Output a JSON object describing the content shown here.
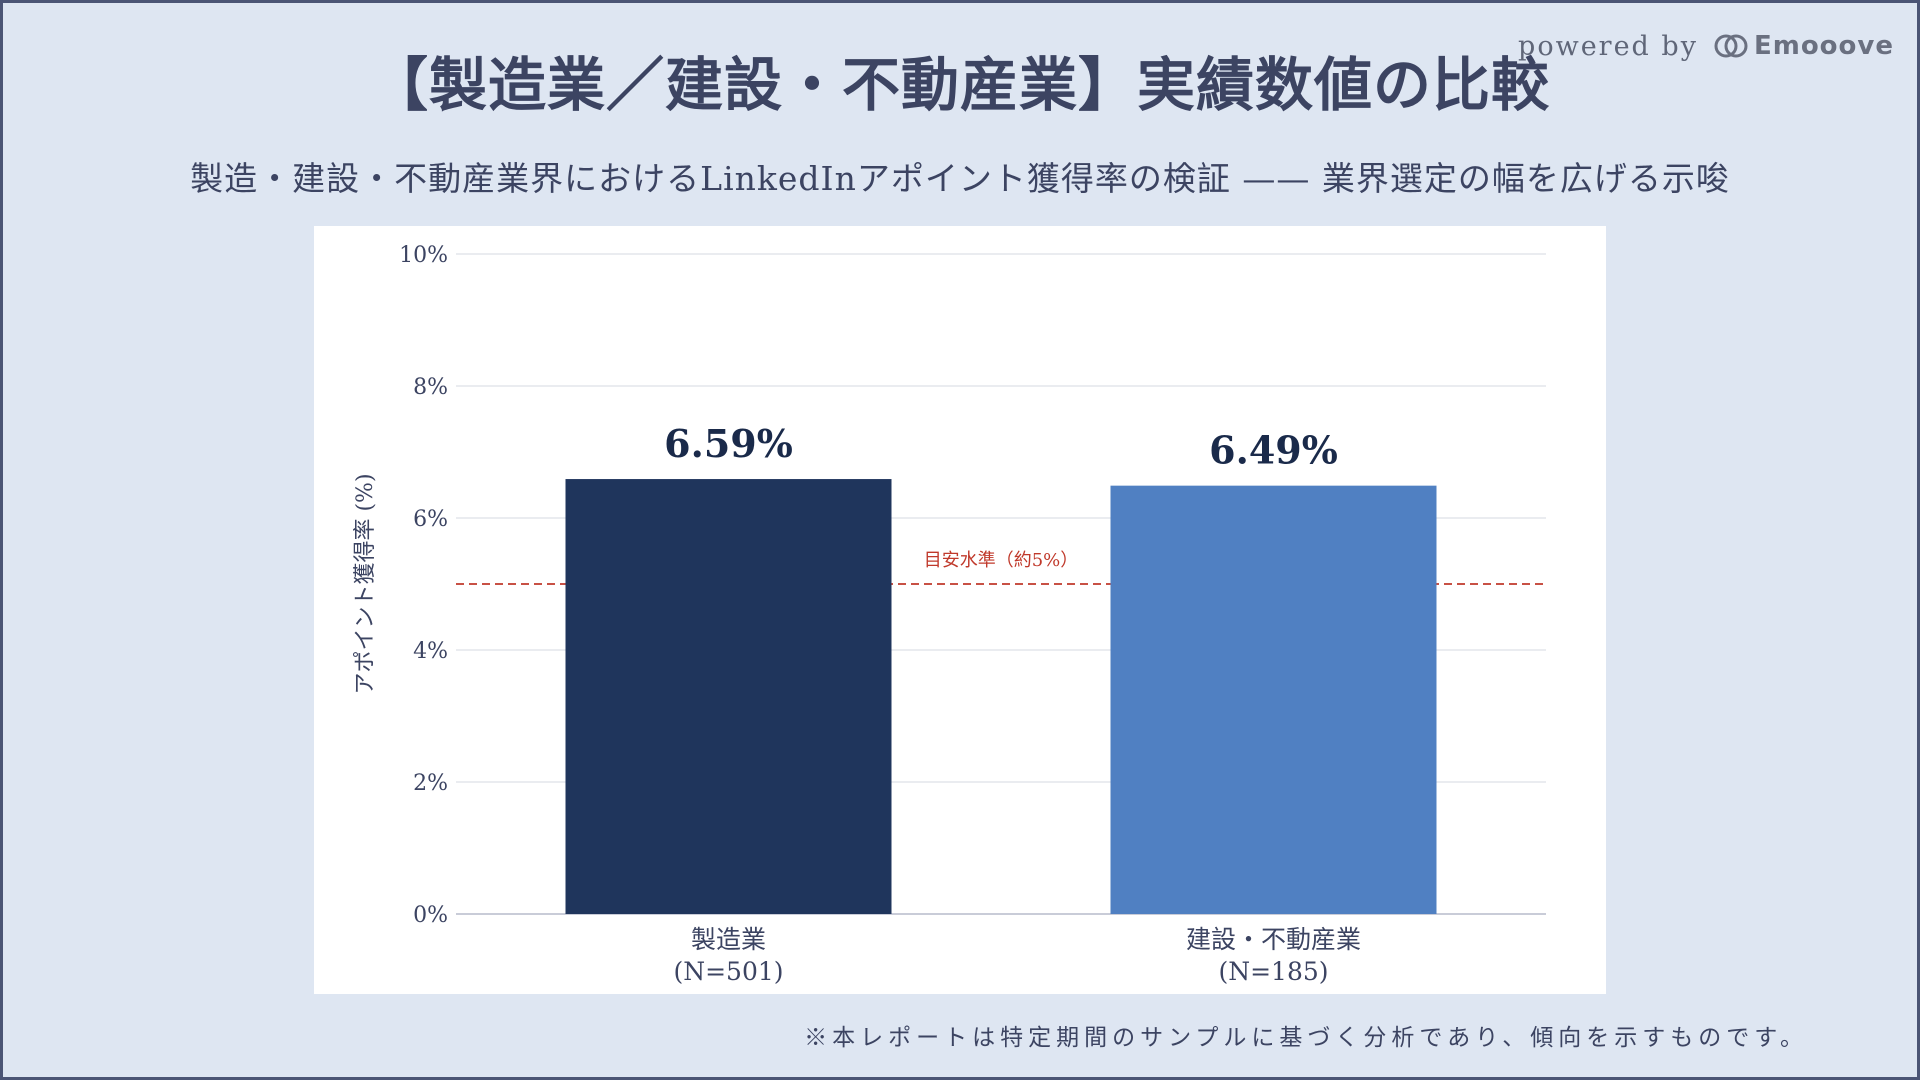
{
  "slide": {
    "title": "【製造業／建設・不動産業】実績数値の比較",
    "subtitle": "製造・建設・不動産業界におけるLinkedInアポイント獲得率の検証 —— 業界選定の幅を広げる示唆",
    "footnote": "※本レポートは特定期間のサンプルに基づく分析であり、傾向を示すものです。"
  },
  "brand": {
    "powered_by": "powered by",
    "name": "Emooove",
    "icon": "emooove-logo-icon"
  },
  "colors": {
    "background": "#dee6f2",
    "manufacturing_bar": "#1f355c",
    "construction_bar": "#5080c2",
    "reference_line": "#c0392b",
    "value_label": "#1a2a4a"
  },
  "chart_data": {
    "type": "bar",
    "categories": [
      "製造業\n(N=501)",
      "建設・不動産業\n(N=185)"
    ],
    "category_lines": [
      [
        "製造業",
        "(N=501)"
      ],
      [
        "建設・不動産業",
        "(N=185)"
      ]
    ],
    "values": [
      6.59,
      6.49
    ],
    "value_labels": [
      "6.59%",
      "6.49%"
    ],
    "bar_colors": [
      "#1f355c",
      "#5080c2"
    ],
    "ylabel": "アポイント獲得率 (%)",
    "ylim": [
      0,
      10
    ],
    "yticks": [
      0,
      2,
      4,
      6,
      8,
      10
    ],
    "ytick_labels": [
      "0%",
      "2%",
      "4%",
      "6%",
      "8%",
      "10%"
    ],
    "grid": true,
    "reference_line": {
      "value": 5,
      "label": "目安水準（約5%）",
      "style": "dashed"
    }
  }
}
